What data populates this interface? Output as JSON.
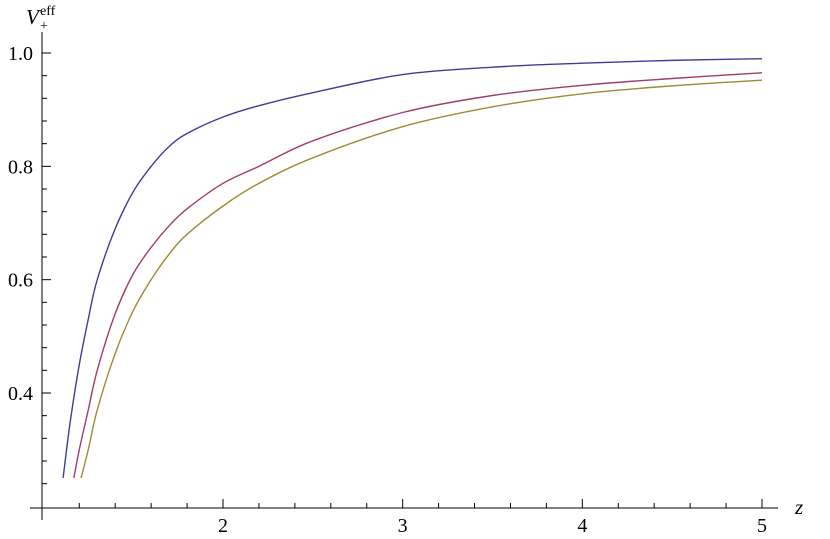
{
  "chart_data": {
    "type": "line",
    "title": "",
    "xlabel": "z",
    "ylabel": {
      "base": "V",
      "subscript": "+",
      "superscript": "eff"
    },
    "xlim": [
      1.0,
      5.08
    ],
    "ylim": [
      0.22,
      1.02
    ],
    "x_ticks": [
      2,
      3,
      4,
      5
    ],
    "x_tick_labels": [
      "2",
      "3",
      "4",
      "5"
    ],
    "y_ticks": [
      0.4,
      0.6,
      0.8,
      1.0
    ],
    "y_tick_labels": [
      "0.4",
      "0.6",
      "0.8",
      "1.0"
    ],
    "grid": false,
    "legend": "none",
    "series": [
      {
        "color": "#3d3d99",
        "x": [
          1.11,
          1.15,
          1.2,
          1.25,
          1.3,
          1.4,
          1.5,
          1.6,
          1.7,
          1.8,
          2.0,
          2.2,
          2.5,
          3.0,
          3.5,
          4.0,
          4.5,
          5.0
        ],
        "y": [
          0.25,
          0.35,
          0.45,
          0.53,
          0.6,
          0.69,
          0.755,
          0.8,
          0.835,
          0.858,
          0.887,
          0.907,
          0.93,
          0.962,
          0.975,
          0.982,
          0.987,
          0.99
        ]
      },
      {
        "color": "#a33a6e",
        "x": [
          1.17,
          1.2,
          1.25,
          1.3,
          1.4,
          1.5,
          1.6,
          1.7,
          1.8,
          2.0,
          2.2,
          2.5,
          3.0,
          3.5,
          4.0,
          4.5,
          5.0
        ],
        "y": [
          0.25,
          0.3,
          0.37,
          0.44,
          0.54,
          0.61,
          0.657,
          0.695,
          0.725,
          0.77,
          0.8,
          0.845,
          0.895,
          0.925,
          0.943,
          0.955,
          0.965
        ]
      },
      {
        "color": "#9d8b35",
        "x": [
          1.21,
          1.25,
          1.3,
          1.4,
          1.5,
          1.6,
          1.7,
          1.8,
          2.0,
          2.2,
          2.5,
          3.0,
          3.5,
          4.0,
          4.5,
          5.0
        ],
        "y": [
          0.25,
          0.3,
          0.37,
          0.47,
          0.545,
          0.6,
          0.645,
          0.68,
          0.73,
          0.77,
          0.815,
          0.87,
          0.905,
          0.928,
          0.942,
          0.952
        ]
      }
    ]
  }
}
